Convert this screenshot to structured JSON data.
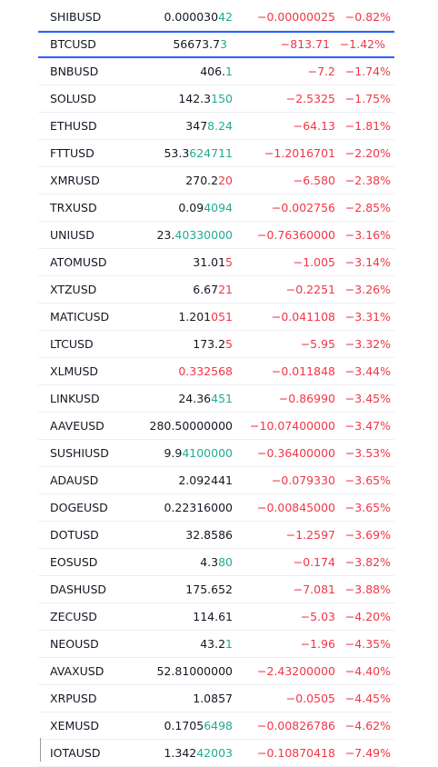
{
  "watchlist": {
    "tones": {
      "up": "#22ab94",
      "down": "#f23645",
      "plain": "#131722"
    },
    "rows": [
      {
        "symbol": "SHIBUSD",
        "price": [
          {
            "text": "0.000030"
          },
          {
            "text": "42",
            "tone": "up"
          }
        ],
        "change": "−0.00000025",
        "change_percent": "−0.82%"
      },
      {
        "symbol": "BTCUSD",
        "selected": true,
        "price": [
          {
            "text": "56673.7"
          },
          {
            "text": "3",
            "tone": "up"
          }
        ],
        "change": "−813.71",
        "change_percent": "−1.42%"
      },
      {
        "symbol": "BNBUSD",
        "price": [
          {
            "text": "406."
          },
          {
            "text": "1",
            "tone": "up"
          }
        ],
        "change": "−7.2",
        "change_percent": "−1.74%"
      },
      {
        "symbol": "SOLUSD",
        "price": [
          {
            "text": "142.3"
          },
          {
            "text": "150",
            "tone": "up"
          }
        ],
        "change": "−2.5325",
        "change_percent": "−1.75%"
      },
      {
        "symbol": "ETHUSD",
        "price": [
          {
            "text": "347"
          },
          {
            "text": "8.24",
            "tone": "up"
          }
        ],
        "change": "−64.13",
        "change_percent": "−1.81%"
      },
      {
        "symbol": "FTTUSD",
        "price": [
          {
            "text": "53.3"
          },
          {
            "text": "624711",
            "tone": "up"
          }
        ],
        "change": "−1.2016701",
        "change_percent": "−2.20%"
      },
      {
        "symbol": "XMRUSD",
        "price": [
          {
            "text": "270.2"
          },
          {
            "text": "20",
            "tone": "down"
          }
        ],
        "change": "−6.580",
        "change_percent": "−2.38%"
      },
      {
        "symbol": "TRXUSD",
        "price": [
          {
            "text": "0.09"
          },
          {
            "text": "4094",
            "tone": "up"
          }
        ],
        "change": "−0.002756",
        "change_percent": "−2.85%"
      },
      {
        "symbol": "UNIUSD",
        "price": [
          {
            "text": "23."
          },
          {
            "text": "40330000",
            "tone": "up"
          }
        ],
        "change": "−0.76360000",
        "change_percent": "−3.16%"
      },
      {
        "symbol": "ATOMUSD",
        "price": [
          {
            "text": "31.01"
          },
          {
            "text": "5",
            "tone": "down"
          }
        ],
        "change": "−1.005",
        "change_percent": "−3.14%"
      },
      {
        "symbol": "XTZUSD",
        "price": [
          {
            "text": "6.67"
          },
          {
            "text": "21",
            "tone": "down"
          }
        ],
        "change": "−0.2251",
        "change_percent": "−3.26%"
      },
      {
        "symbol": "MATICUSD",
        "price": [
          {
            "text": "1.201"
          },
          {
            "text": "051",
            "tone": "down"
          }
        ],
        "change": "−0.041108",
        "change_percent": "−3.31%"
      },
      {
        "symbol": "LTCUSD",
        "price": [
          {
            "text": "173.2"
          },
          {
            "text": "5",
            "tone": "down"
          }
        ],
        "change": "−5.95",
        "change_percent": "−3.32%"
      },
      {
        "symbol": "XLMUSD",
        "price": [
          {
            "text": "0.332568",
            "tone": "down"
          }
        ],
        "change": "−0.011848",
        "change_percent": "−3.44%"
      },
      {
        "symbol": "LINKUSD",
        "price": [
          {
            "text": "24.36"
          },
          {
            "text": "451",
            "tone": "up"
          }
        ],
        "change": "−0.86990",
        "change_percent": "−3.45%"
      },
      {
        "symbol": "AAVEUSD",
        "price": [
          {
            "text": "280.50000000"
          }
        ],
        "change": "−10.07400000",
        "change_percent": "−3.47%"
      },
      {
        "symbol": "SUSHIUSD",
        "price": [
          {
            "text": "9.9"
          },
          {
            "text": "4100000",
            "tone": "up"
          }
        ],
        "change": "−0.36400000",
        "change_percent": "−3.53%"
      },
      {
        "symbol": "ADAUSD",
        "price": [
          {
            "text": "2.092441"
          }
        ],
        "change": "−0.079330",
        "change_percent": "−3.65%"
      },
      {
        "symbol": "DOGEUSD",
        "price": [
          {
            "text": "0.22316000"
          }
        ],
        "change": "−0.00845000",
        "change_percent": "−3.65%"
      },
      {
        "symbol": "DOTUSD",
        "price": [
          {
            "text": "32.8586"
          }
        ],
        "change": "−1.2597",
        "change_percent": "−3.69%"
      },
      {
        "symbol": "EOSUSD",
        "price": [
          {
            "text": "4.3"
          },
          {
            "text": "80",
            "tone": "up"
          }
        ],
        "change": "−0.174",
        "change_percent": "−3.82%"
      },
      {
        "symbol": "DASHUSD",
        "price": [
          {
            "text": "175.652"
          }
        ],
        "change": "−7.081",
        "change_percent": "−3.88%"
      },
      {
        "symbol": "ZECUSD",
        "price": [
          {
            "text": "114.61"
          }
        ],
        "change": "−5.03",
        "change_percent": "−4.20%"
      },
      {
        "symbol": "NEOUSD",
        "price": [
          {
            "text": "43.2"
          },
          {
            "text": "1",
            "tone": "up"
          }
        ],
        "change": "−1.96",
        "change_percent": "−4.35%"
      },
      {
        "symbol": "AVAXUSD",
        "price": [
          {
            "text": "52.81000000"
          }
        ],
        "change": "−2.43200000",
        "change_percent": "−4.40%"
      },
      {
        "symbol": "XRPUSD",
        "price": [
          {
            "text": "1.0857"
          }
        ],
        "change": "−0.0505",
        "change_percent": "−4.45%"
      },
      {
        "symbol": "XEMUSD",
        "price": [
          {
            "text": "0.1705"
          },
          {
            "text": "6498",
            "tone": "up"
          }
        ],
        "change": "−0.00826786",
        "change_percent": "−4.62%"
      },
      {
        "symbol": "IOTAUSD",
        "price": [
          {
            "text": "1.342"
          },
          {
            "text": "42003",
            "tone": "up"
          }
        ],
        "change": "−0.10870418",
        "change_percent": "−7.49%"
      }
    ]
  }
}
